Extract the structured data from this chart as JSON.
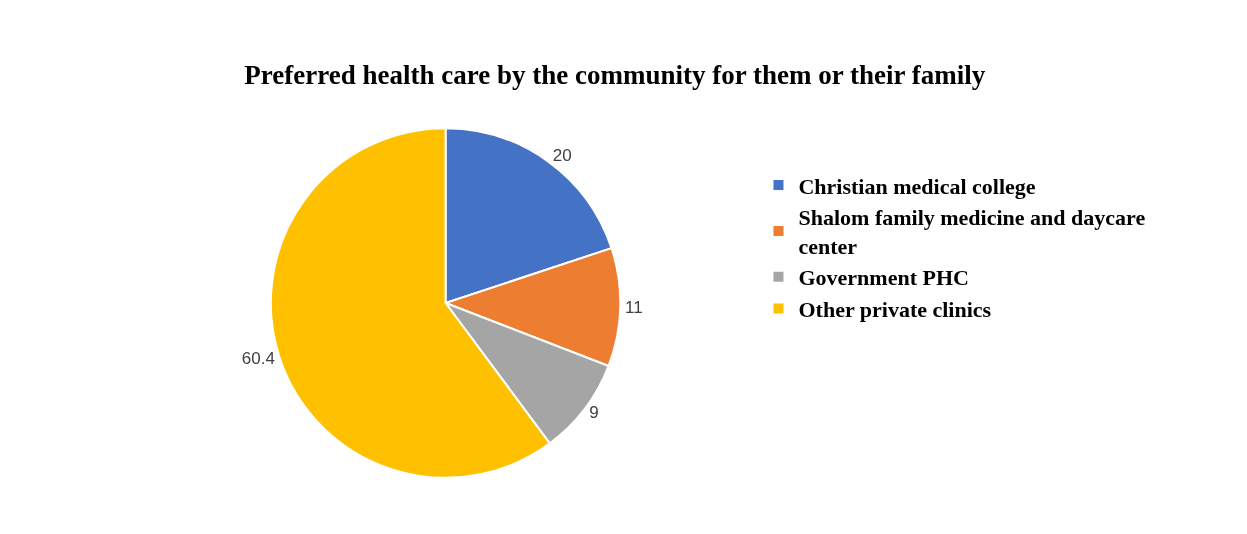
{
  "chart_data": {
    "type": "pie",
    "title": "Preferred health care by the community for them or their family",
    "categories": [
      "Christian medical college",
      "Shalom family medicine and daycare center",
      "Government PHC",
      "Other private clinics"
    ],
    "values": [
      20,
      11,
      9,
      60.4
    ],
    "colors": [
      "#4472c4",
      "#ed7d31",
      "#a5a5a5",
      "#ffc000"
    ],
    "data_labels": true,
    "legend": "right"
  }
}
